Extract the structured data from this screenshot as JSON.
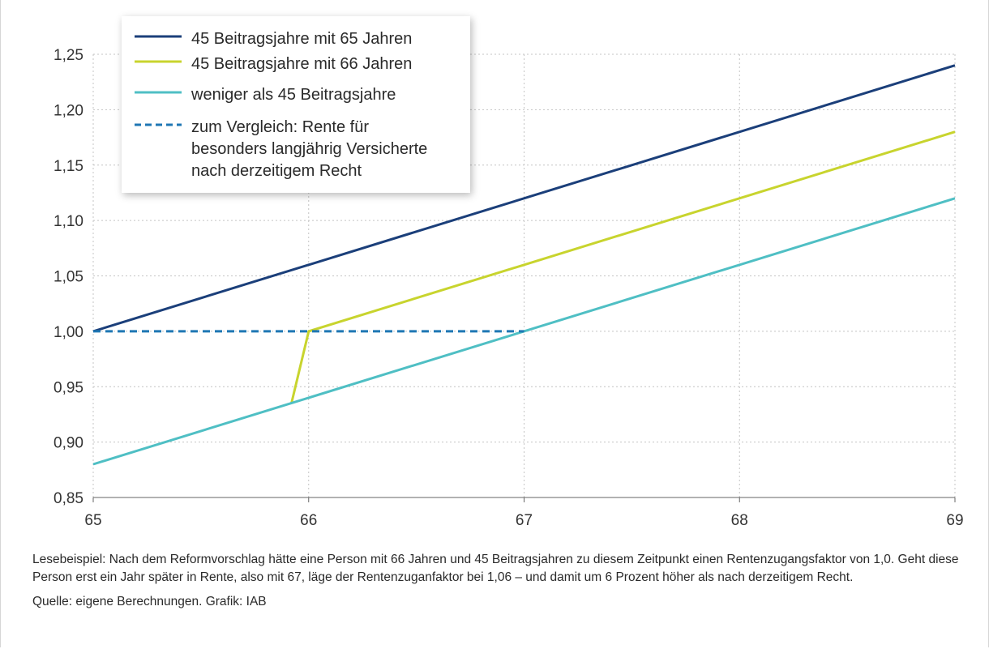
{
  "chart_data": {
    "type": "line",
    "xlim": [
      65,
      69
    ],
    "ylim": [
      0.85,
      1.25
    ],
    "x_ticks": [
      {
        "value": 65,
        "label": "65"
      },
      {
        "value": 66,
        "label": "66"
      },
      {
        "value": 67,
        "label": "67"
      },
      {
        "value": 68,
        "label": "68"
      },
      {
        "value": 69,
        "label": "69"
      }
    ],
    "y_ticks": [
      {
        "value": 0.85,
        "label": "0,85"
      },
      {
        "value": 0.9,
        "label": "0,90"
      },
      {
        "value": 0.95,
        "label": "0,95"
      },
      {
        "value": 1.0,
        "label": "1,00"
      },
      {
        "value": 1.05,
        "label": "1,05"
      },
      {
        "value": 1.1,
        "label": "1,10"
      },
      {
        "value": 1.15,
        "label": "1,15"
      },
      {
        "value": 1.2,
        "label": "1,20"
      },
      {
        "value": 1.25,
        "label": "1,25"
      }
    ],
    "grid": true,
    "legend_position": "top-left",
    "series": [
      {
        "name": "45 Beitragsjahre mit 65 Jahren",
        "color": "#1b3f7a",
        "style": "solid",
        "points": [
          [
            65,
            1.0
          ],
          [
            69,
            1.24
          ]
        ]
      },
      {
        "name": "45 Beitragsjahre mit 66 Jahren",
        "color": "#c8d42e",
        "style": "solid",
        "points": [
          [
            65.92,
            0.935
          ],
          [
            66.0,
            1.0
          ],
          [
            69,
            1.18
          ]
        ]
      },
      {
        "name": "weniger als 45 Beitragsjahre",
        "color": "#4fbfc4",
        "style": "solid",
        "points": [
          [
            65,
            0.88
          ],
          [
            69,
            1.12
          ]
        ]
      },
      {
        "name": "zum Vergleich: Rente für\nbesonders langjährig Versicherte\nnach derzeitigem Recht",
        "color": "#1f77b4",
        "style": "dashed",
        "points": [
          [
            65,
            1.0
          ],
          [
            67,
            1.0
          ]
        ]
      }
    ]
  },
  "notes": {
    "reading_example": "Lesebeispiel: Nach dem Reformvorschlag hätte eine Person mit 66 Jahren und 45 Beitragsjahren zu diesem Zeitpunkt einen Rentenzugangsfaktor von 1,0. Geht diese Person erst ein Jahr später in Rente, also mit 67, läge der Rentenzuganfaktor bei 1,06 – und damit um 6 Prozent höher als nach derzeitigem Recht.",
    "source": "Quelle: eigene Berechnungen. Grafik: IAB"
  }
}
